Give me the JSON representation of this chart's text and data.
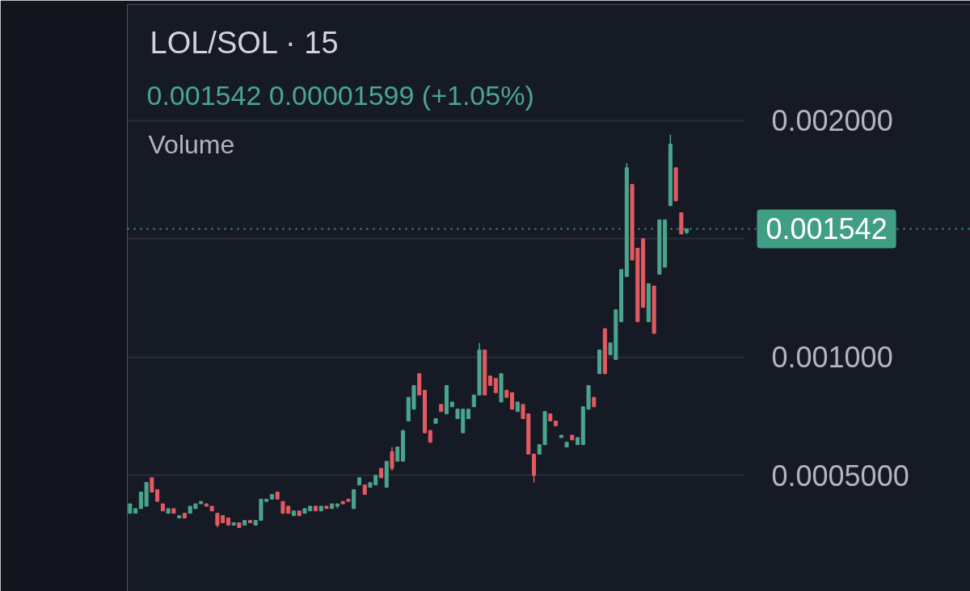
{
  "chart_data": {
    "type": "candlestick",
    "title": "LOL/SOL · 15",
    "subtitle": "0.001542 0.00001599 (+1.05%)",
    "annotations": [
      "Volume"
    ],
    "categories": [
      null,
      null,
      null,
      null,
      null,
      null,
      null,
      null,
      null,
      null,
      null,
      null,
      null,
      null,
      null,
      null,
      null,
      null,
      null,
      null,
      null,
      null,
      null,
      null,
      null,
      null,
      null,
      null,
      null,
      null,
      null,
      null,
      null,
      null,
      null,
      null,
      null,
      null,
      null,
      null,
      null,
      null,
      null,
      null,
      null,
      null,
      null,
      null,
      null,
      null,
      null,
      null,
      null,
      null,
      null,
      null,
      null,
      null,
      null,
      null,
      null,
      null,
      null,
      null,
      null,
      null,
      null,
      null,
      null,
      null,
      null,
      null,
      null,
      null,
      null,
      null,
      null,
      null,
      null,
      null,
      null,
      null,
      null,
      null,
      null,
      null,
      null,
      null,
      null,
      null,
      null,
      null,
      null,
      null,
      null,
      null,
      null,
      null,
      null,
      null,
      null,
      null,
      null,
      null,
      null,
      null,
      null,
      null,
      null,
      null,
      null,
      null,
      null
    ],
    "ohlc": [
      [
        0.00034,
        0.00038,
        0.00034,
        0.00038
      ],
      [
        0.00034,
        0.00036,
        0.00034,
        0.00036
      ],
      [
        0.00036,
        0.00043,
        0.00036,
        0.00043
      ],
      [
        0.00037,
        0.00047,
        0.00037,
        0.00047
      ],
      [
        0.00049,
        0.00049,
        0.00043,
        0.00043
      ],
      [
        0.00044,
        0.00044,
        0.00039,
        0.00039
      ],
      [
        0.00038,
        0.00038,
        0.00035,
        0.00035
      ],
      [
        0.00034,
        0.00036,
        0.00034,
        0.00036
      ],
      [
        0.00036,
        0.00036,
        0.00034,
        0.00034
      ],
      [
        0.00032,
        0.00033,
        0.00032,
        0.00033
      ],
      [
        0.00034,
        0.00034,
        0.00032,
        0.00032
      ],
      [
        0.00034,
        0.00037,
        0.00034,
        0.00037
      ],
      [
        0.00036,
        0.00038,
        0.00036,
        0.00038
      ],
      [
        0.00038,
        0.00039,
        0.00038,
        0.00039
      ],
      [
        0.00038,
        0.00038,
        0.00037,
        0.00037
      ],
      [
        0.00037,
        0.00037,
        0.00035,
        0.00035
      ],
      [
        0.00034,
        0.00034,
        0.00028,
        0.00029
      ],
      [
        0.00033,
        0.00033,
        0.0003,
        0.0003
      ],
      [
        0.00032,
        0.00032,
        0.00029,
        0.00029
      ],
      [
        0.00029,
        0.0003,
        0.00029,
        0.0003
      ],
      [
        0.0003,
        0.0003,
        0.00028,
        0.00028
      ],
      [
        0.00029,
        0.00031,
        0.00029,
        0.00031
      ],
      [
        0.00031,
        0.00031,
        0.0003,
        0.0003
      ],
      [
        0.00029,
        0.00031,
        0.00029,
        0.00031
      ],
      [
        0.00031,
        0.0004,
        0.00031,
        0.0004
      ],
      [
        0.00039,
        0.0004,
        0.00039,
        0.0004
      ],
      [
        0.0004,
        0.00042,
        0.0004,
        0.00042
      ],
      [
        0.00043,
        0.00043,
        0.0004,
        0.0004
      ],
      [
        0.00039,
        0.00039,
        0.00034,
        0.00034
      ],
      [
        0.00037,
        0.00037,
        0.00034,
        0.00034
      ],
      [
        0.00033,
        0.00035,
        0.00033,
        0.00035
      ],
      [
        0.00035,
        0.00035,
        0.00033,
        0.00033
      ],
      [
        0.00034,
        0.00036,
        0.00034,
        0.00036
      ],
      [
        0.00035,
        0.00037,
        0.00035,
        0.00037
      ],
      [
        0.00037,
        0.00037,
        0.00035,
        0.00035
      ],
      [
        0.00035,
        0.00037,
        0.00035,
        0.00037
      ],
      [
        0.00037,
        0.00037,
        0.00036,
        0.00036
      ],
      [
        0.00036,
        0.00038,
        0.00036,
        0.00038
      ],
      [
        0.00037,
        0.00038,
        0.00036,
        0.00038
      ],
      [
        0.00039,
        0.00039,
        0.00038,
        0.00038
      ],
      [
        0.0004,
        0.0004,
        0.00039,
        0.00039
      ],
      [
        0.00036,
        0.00044,
        0.00036,
        0.00044
      ],
      [
        0.00046,
        0.00049,
        0.00046,
        0.00049
      ],
      [
        0.00046,
        0.00046,
        0.00042,
        0.00042
      ],
      [
        0.00045,
        0.00047,
        0.00045,
        0.00047
      ],
      [
        0.00046,
        0.0005,
        0.00046,
        0.0005
      ],
      [
        0.00053,
        0.00053,
        0.00049,
        0.00049
      ],
      [
        0.00045,
        0.00056,
        0.00045,
        0.00056
      ],
      [
        0.0006,
        0.00062,
        0.00052,
        0.00053
      ],
      [
        0.00056,
        0.00062,
        0.00056,
        0.00062
      ],
      [
        0.00056,
        0.00069,
        0.00056,
        0.00069
      ],
      [
        0.00073,
        0.00083,
        0.00073,
        0.00083
      ],
      [
        0.00078,
        0.00088,
        0.00078,
        0.00088
      ],
      [
        0.00093,
        0.00093,
        0.00084,
        0.00084
      ],
      [
        0.00086,
        0.00086,
        0.00068,
        0.00068
      ],
      [
        0.00069,
        0.00069,
        0.00064,
        0.00064
      ],
      [
        0.00072,
        0.00074,
        0.00072,
        0.00074
      ],
      [
        0.0008,
        0.0008,
        0.00077,
        0.00077
      ],
      [
        0.00076,
        0.00088,
        0.00076,
        0.00088
      ],
      [
        0.00079,
        0.00081,
        0.00079,
        0.00081
      ],
      [
        0.00074,
        0.00078,
        0.00074,
        0.00078
      ],
      [
        0.00068,
        0.00078,
        0.00068,
        0.00078
      ],
      [
        0.00074,
        0.00078,
        0.00074,
        0.00078
      ],
      [
        0.00079,
        0.00084,
        0.00079,
        0.00084
      ],
      [
        0.00084,
        0.00106,
        0.00084,
        0.00103
      ],
      [
        0.00103,
        0.00103,
        0.00084,
        0.00084
      ],
      [
        0.00092,
        0.00092,
        0.00088,
        0.00088
      ],
      [
        0.00091,
        0.00091,
        0.00085,
        0.00085
      ],
      [
        0.00081,
        0.00093,
        0.00081,
        0.00093
      ],
      [
        0.00086,
        0.00086,
        0.00083,
        0.00083
      ],
      [
        0.00085,
        0.00085,
        0.00078,
        0.00078
      ],
      [
        0.00077,
        0.00081,
        0.00077,
        0.00081
      ],
      [
        0.0008,
        0.0008,
        0.00074,
        0.00074
      ],
      [
        0.00076,
        0.00076,
        0.00059,
        0.00059
      ],
      [
        0.00059,
        0.00059,
        0.00047,
        0.0005
      ],
      [
        0.00059,
        0.00063,
        0.00059,
        0.00063
      ],
      [
        0.00063,
        0.00077,
        0.00063,
        0.00077
      ],
      [
        0.00076,
        0.00076,
        0.00073,
        0.00073
      ],
      [
        0.00073,
        0.00073,
        0.00071,
        0.00071
      ],
      [
        0.00066,
        0.00067,
        0.00066,
        0.00067
      ],
      [
        0.00062,
        0.00064,
        0.00062,
        0.00064
      ],
      [
        0.00067,
        0.00067,
        0.00065,
        0.00065
      ],
      [
        0.00063,
        0.00066,
        0.00063,
        0.00066
      ],
      [
        0.00063,
        0.00079,
        0.00063,
        0.00079
      ],
      [
        0.00078,
        0.00088,
        0.00078,
        0.00088
      ],
      [
        0.00083,
        0.00083,
        0.00079,
        0.00079
      ],
      [
        0.00093,
        0.00103,
        0.00093,
        0.00103
      ],
      [
        0.00112,
        0.00112,
        0.00093,
        0.00093
      ],
      [
        0.00101,
        0.00106,
        0.00101,
        0.00106
      ],
      [
        0.00099,
        0.0012,
        0.00099,
        0.0012
      ],
      [
        0.00115,
        0.00137,
        0.00115,
        0.00137
      ],
      [
        0.00134,
        0.00182,
        0.00134,
        0.0018
      ],
      [
        0.00173,
        0.00173,
        0.00141,
        0.00141
      ],
      [
        0.00146,
        0.00146,
        0.00115,
        0.00115
      ],
      [
        0.0015,
        0.0015,
        0.00121,
        0.00121
      ],
      [
        0.00115,
        0.00131,
        0.00115,
        0.00131
      ],
      [
        0.0013,
        0.0013,
        0.0011,
        0.0011
      ],
      [
        0.00135,
        0.00158,
        0.00135,
        0.00158
      ],
      [
        0.00138,
        0.00158,
        0.00138,
        0.00158
      ],
      [
        0.00164,
        0.00194,
        0.00164,
        0.0019
      ],
      [
        0.0018,
        0.0018,
        0.00166,
        0.00166
      ],
      [
        0.00161,
        0.00161,
        0.00152,
        0.00152
      ],
      [
        0.001526,
        0.001542,
        0.00152,
        0.001542
      ],
      null,
      null,
      null,
      null,
      null,
      null,
      null,
      null,
      null,
      null
    ],
    "colors": [
      "#4aa58d",
      "#4aa58d",
      "#4aa58d",
      "#4aa58d",
      "#e45a61",
      "#e45a61",
      "#e45a61",
      "#4aa58d",
      "#e45a61",
      "#4aa58d",
      "#e45a61",
      "#4aa58d",
      "#4aa58d",
      "#4aa58d",
      "#e45a61",
      "#e45a61",
      "#e45a61",
      "#e45a61",
      "#e45a61",
      "#4aa58d",
      "#e45a61",
      "#4aa58d",
      "#e45a61",
      "#4aa58d",
      "#4aa58d",
      "#4aa58d",
      "#4aa58d",
      "#e45a61",
      "#e45a61",
      "#e45a61",
      "#4aa58d",
      "#e45a61",
      "#4aa58d",
      "#4aa58d",
      "#e45a61",
      "#4aa58d",
      "#e45a61",
      "#4aa58d",
      "#4aa58d",
      "#e45a61",
      "#e45a61",
      "#4aa58d",
      "#4aa58d",
      "#e45a61",
      "#4aa58d",
      "#4aa58d",
      "#e45a61",
      "#4aa58d",
      "#e45a61",
      "#4aa58d",
      "#4aa58d",
      "#4aa58d",
      "#4aa58d",
      "#e45a61",
      "#e45a61",
      "#e45a61",
      "#4aa58d",
      "#e45a61",
      "#4aa58d",
      "#4aa58d",
      "#4aa58d",
      "#4aa58d",
      "#4aa58d",
      "#4aa58d",
      "#4aa58d",
      "#e45a61",
      "#e45a61",
      "#e45a61",
      "#4aa58d",
      "#e45a61",
      "#e45a61",
      "#4aa58d",
      "#e45a61",
      "#e45a61",
      "#e45a61",
      "#4aa58d",
      "#4aa58d",
      "#e45a61",
      "#e45a61",
      "#4aa58d",
      "#4aa58d",
      "#e45a61",
      "#4aa58d",
      "#4aa58d",
      "#4aa58d",
      "#e45a61",
      "#4aa58d",
      "#e45a61",
      "#4aa58d",
      "#4aa58d",
      "#4aa58d",
      "#4aa58d",
      "#e45a61",
      "#e45a61",
      "#e45a61",
      "#4aa58d",
      "#e45a61",
      "#4aa58d",
      "#4aa58d",
      "#4aa58d",
      "#e45a61",
      "#e45a61",
      "#4aa58d",
      null,
      null,
      null,
      null,
      null,
      null,
      null,
      null,
      null,
      null
    ],
    "ylim": [
      1e-05,
      0.00249
    ],
    "yticks": [
      {
        "value": 0.0005,
        "label": "0.0005000"
      },
      {
        "value": 0.001,
        "label": "0.001000"
      },
      {
        "value": 0.0015,
        "label": null
      },
      {
        "value": 0.002,
        "label": "0.002000"
      }
    ],
    "grid": "y",
    "tick_labels": "y",
    "ref_lines": [
      {
        "axis": "y",
        "value": 0.001542,
        "label": "0.001542",
        "color": "#3f9e83",
        "line_style": "dotted"
      }
    ]
  }
}
